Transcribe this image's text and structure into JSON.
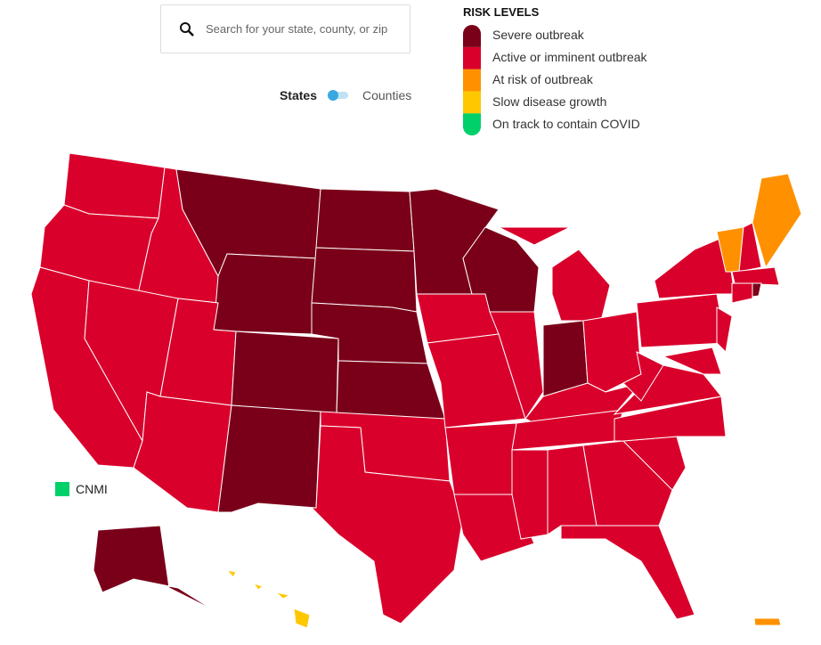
{
  "search": {
    "placeholder": "Search for your state, county, or zip"
  },
  "toggle": {
    "left": "States",
    "right": "Counties"
  },
  "legend": {
    "title": "RISK LEVELS",
    "items": [
      {
        "label": "Severe outbreak",
        "color": "#7a0019"
      },
      {
        "label": "Active or imminent outbreak",
        "color": "#d9002b"
      },
      {
        "label": "At risk of outbreak",
        "color": "#ff9100"
      },
      {
        "label": "Slow disease growth",
        "color": "#ffc700"
      },
      {
        "label": "On track to contain COVID",
        "color": "#00d06a"
      }
    ]
  },
  "territories": {
    "cnmi": "CNMI"
  }
}
